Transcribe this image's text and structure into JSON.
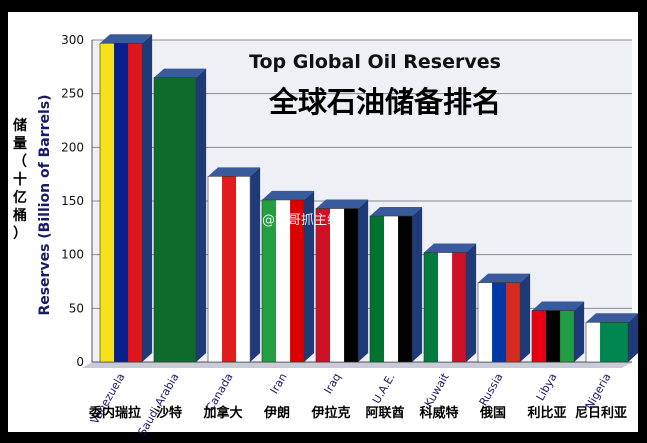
{
  "chart_data": {
    "type": "bar",
    "title": "Top Global Oil Reserves",
    "subtitle": "全球石油储备排名",
    "ylabel": "Reserves (Billion of Barrels)",
    "ylabel_zh": "储量（十亿桶）",
    "ylim": [
      0,
      300
    ],
    "yticks": [
      0,
      50,
      100,
      150,
      200,
      250,
      300
    ],
    "grid": true,
    "categories": [
      "Venezuela",
      "Saudi Arabia",
      "Canada",
      "Iran",
      "Iraq",
      "U.A.E.",
      "Kuwait",
      "Russia",
      "Libya",
      "Nigeria"
    ],
    "categories_zh": [
      "委内瑞拉",
      "沙特",
      "加拿大",
      "伊朗",
      "伊拉克",
      "阿联酋",
      "科威特",
      "俄国",
      "利比亚",
      "尼日利亚"
    ],
    "values": [
      297,
      265,
      173,
      151,
      143,
      136,
      102,
      74,
      48,
      37
    ],
    "flag_colors": [
      [
        "#f7e11a",
        "#0b1f8c",
        "#e0161b"
      ],
      [
        "#0f6b2c",
        "#0f6b2c",
        "#0f6b2c"
      ],
      [
        "#ffffff",
        "#e21c1c",
        "#ffffff"
      ],
      [
        "#239f40",
        "#ffffff",
        "#da0000"
      ],
      [
        "#ce1126",
        "#ffffff",
        "#000000"
      ],
      [
        "#00732f",
        "#ffffff",
        "#000000"
      ],
      [
        "#007a3d",
        "#ffffff",
        "#ce1126"
      ],
      [
        "#ffffff",
        "#0039a6",
        "#d52b1e"
      ],
      [
        "#e70013",
        "#000000",
        "#239e46"
      ],
      [
        "#ffffff",
        "#008751",
        "#008751"
      ]
    ]
  },
  "watermark": "@龙哥抓主线"
}
